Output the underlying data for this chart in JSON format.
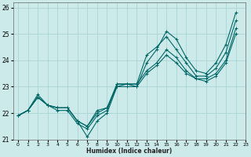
{
  "xlabel": "Humidex (Indice chaleur)",
  "background_color": "#cceaea",
  "grid_color": "#aad4d4",
  "line_color": "#006666",
  "xlim": [
    -0.5,
    23
  ],
  "ylim": [
    21,
    26.2
  ],
  "xticks": [
    0,
    1,
    2,
    3,
    4,
    5,
    6,
    7,
    8,
    9,
    10,
    11,
    12,
    13,
    14,
    15,
    16,
    17,
    18,
    19,
    20,
    21,
    22,
    23
  ],
  "yticks": [
    21,
    22,
    23,
    24,
    25,
    26
  ],
  "series": [
    [
      21.9,
      22.1,
      22.7,
      22.3,
      22.2,
      22.2,
      21.7,
      21.1,
      21.7,
      22.0,
      23.0,
      23.0,
      23.0,
      23.9,
      24.4,
      25.1,
      24.8,
      24.1,
      23.6,
      23.5,
      23.9,
      24.6,
      25.8
    ],
    [
      21.9,
      22.1,
      22.6,
      22.3,
      22.1,
      22.1,
      21.6,
      21.4,
      21.9,
      22.1,
      23.1,
      23.1,
      23.1,
      24.2,
      24.5,
      24.9,
      24.4,
      23.9,
      23.4,
      23.4,
      23.7,
      24.3,
      25.5
    ],
    [
      21.9,
      22.1,
      22.6,
      22.3,
      22.2,
      22.2,
      21.7,
      21.5,
      22.1,
      22.2,
      23.1,
      23.1,
      23.1,
      23.6,
      23.9,
      24.4,
      24.1,
      23.6,
      23.3,
      23.3,
      23.5,
      24.0,
      25.2
    ],
    [
      21.9,
      22.1,
      22.6,
      22.3,
      22.2,
      22.2,
      21.7,
      21.5,
      22.0,
      22.2,
      23.0,
      23.1,
      23.0,
      23.5,
      23.8,
      24.2,
      23.9,
      23.5,
      23.3,
      23.2,
      23.4,
      23.9,
      25.0
    ]
  ]
}
